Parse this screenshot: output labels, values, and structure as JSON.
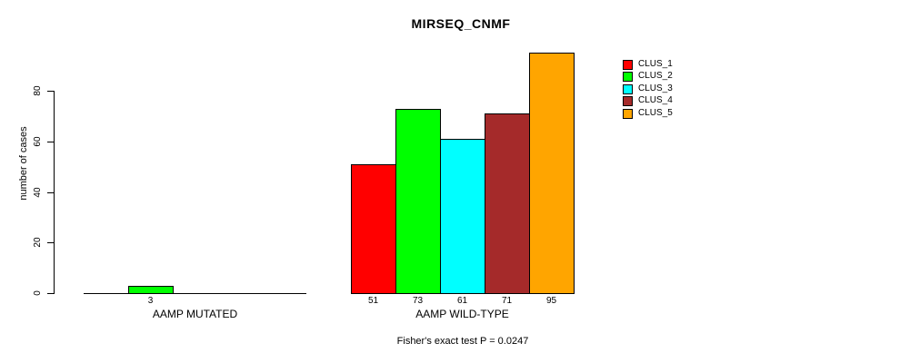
{
  "chart_data": {
    "type": "bar",
    "title": "MIRSEQ_CNMF",
    "ylabel": "number of cases",
    "footer": "Fisher's exact test P = 0.0247",
    "yticks": [
      0,
      20,
      40,
      60,
      80
    ],
    "ylim": [
      0,
      95
    ],
    "grid": false,
    "legend_position": "right-inside",
    "axis_color": "#000000",
    "clusters": [
      {
        "name": "CLUS_1",
        "color": "#FF0000"
      },
      {
        "name": "CLUS_2",
        "color": "#00FF00"
      },
      {
        "name": "CLUS_3",
        "color": "#00FFFF"
      },
      {
        "name": "CLUS_4",
        "color": "#A52A2A"
      },
      {
        "name": "CLUS_5",
        "color": "#FFA500"
      }
    ],
    "groups": [
      {
        "label": "AAMP MUTATED",
        "values": [
          0,
          3,
          0,
          0,
          0
        ]
      },
      {
        "label": "AAMP WILD-TYPE",
        "values": [
          51,
          73,
          61,
          71,
          95
        ]
      }
    ]
  }
}
